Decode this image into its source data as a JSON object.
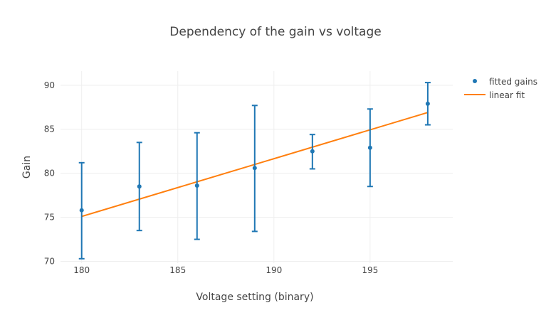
{
  "chart_data": {
    "type": "scatter",
    "title": "Dependency of the gain vs voltage",
    "xlabel": "Voltage setting (binary)",
    "ylabel": "Gain",
    "xlim": [
      178.9,
      199.3
    ],
    "ylim": [
      69.8,
      91.6
    ],
    "x_ticks": [
      180,
      185,
      190,
      195
    ],
    "y_ticks": [
      70,
      75,
      80,
      85,
      90
    ],
    "grid": true,
    "legend_position": "top-right",
    "colors": {
      "fitted": "#1f77b4",
      "fit": "#ff7f0e"
    },
    "series": [
      {
        "name": "fitted gains",
        "type": "scatter",
        "points": [
          {
            "x": 180,
            "y": 75.8,
            "err_low": 70.3,
            "err_high": 81.2
          },
          {
            "x": 183,
            "y": 78.5,
            "err_low": 73.5,
            "err_high": 83.5
          },
          {
            "x": 186,
            "y": 78.6,
            "err_low": 72.5,
            "err_high": 84.6
          },
          {
            "x": 189,
            "y": 80.6,
            "err_low": 73.4,
            "err_high": 87.7
          },
          {
            "x": 192,
            "y": 82.5,
            "err_low": 80.5,
            "err_high": 84.4
          },
          {
            "x": 195,
            "y": 82.9,
            "err_low": 78.5,
            "err_high": 87.3
          },
          {
            "x": 198,
            "y": 87.9,
            "err_low": 85.5,
            "err_high": 90.3
          }
        ]
      },
      {
        "name": "linear fit",
        "type": "line",
        "x": [
          180,
          198
        ],
        "y": [
          75.1,
          86.9
        ]
      }
    ]
  }
}
